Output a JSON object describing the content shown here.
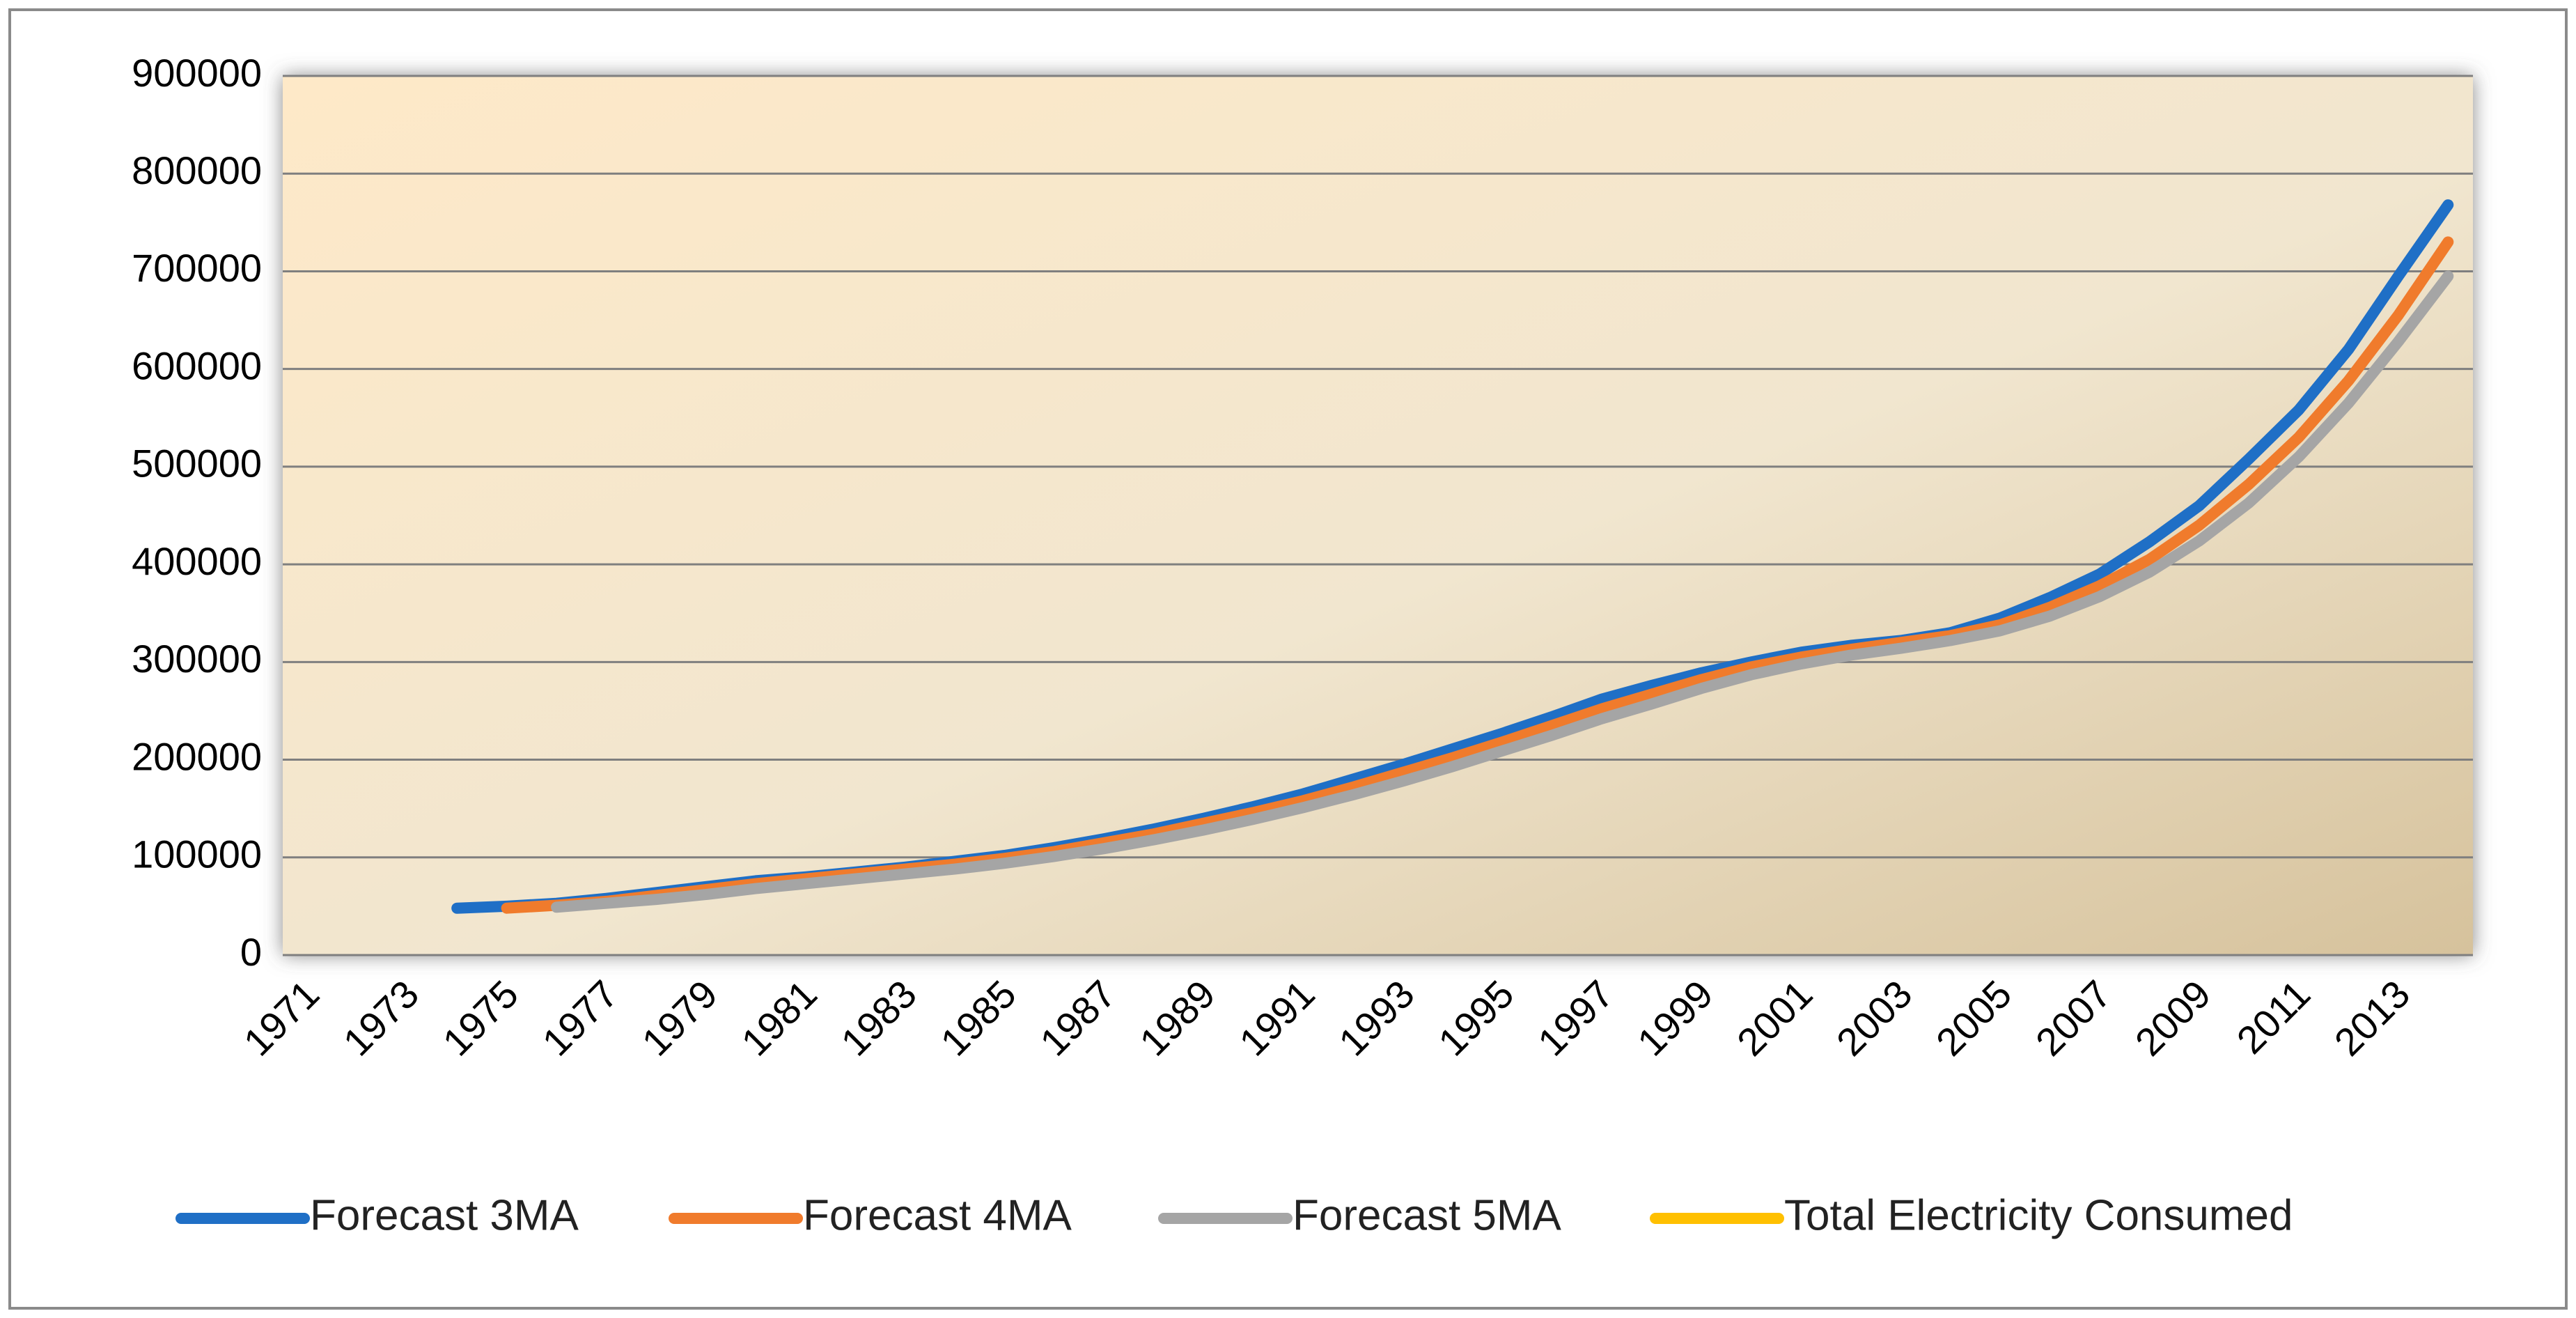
{
  "chart_data": {
    "type": "line",
    "categories": [
      "1971",
      null,
      "1973",
      null,
      "1975",
      null,
      "1977",
      null,
      "1979",
      null,
      "1981",
      null,
      "1983",
      null,
      "1985",
      null,
      "1987",
      null,
      "1989",
      null,
      "1991",
      null,
      "1993",
      null,
      "1995",
      null,
      "1997",
      null,
      "1999",
      null,
      "2001",
      null,
      "2003",
      null,
      "2005",
      null,
      "2007",
      null,
      "2009",
      null,
      "2011",
      null,
      "2013",
      null
    ],
    "series": [
      {
        "name": "Forecast 3MA",
        "color": "#1f6fc6",
        "values": [
          null,
          null,
          null,
          48000,
          50000,
          53000,
          58000,
          64000,
          70000,
          76000,
          80000,
          85000,
          90000,
          96000,
          102000,
          110000,
          119000,
          129000,
          140000,
          152000,
          165000,
          180000,
          195000,
          211000,
          227000,
          244000,
          262000,
          276000,
          289000,
          300000,
          310000,
          317000,
          322000,
          330000,
          345000,
          366000,
          390000,
          423000,
          460000,
          508000,
          558000,
          620000,
          695000,
          768000
        ]
      },
      {
        "name": "Forecast 4MA",
        "color": "#f07b2c",
        "values": [
          null,
          null,
          null,
          null,
          48000,
          51000,
          55000,
          61000,
          67000,
          73000,
          78000,
          83000,
          88000,
          93000,
          99000,
          106000,
          115000,
          124000,
          135000,
          146000,
          158000,
          172000,
          187000,
          202000,
          218000,
          235000,
          252000,
          267000,
          282000,
          295000,
          305000,
          313000,
          320000,
          327000,
          338000,
          356000,
          378000,
          405000,
          440000,
          482000,
          530000,
          588000,
          655000,
          730000
        ]
      },
      {
        "name": "Forecast 5MA",
        "color": "#a5a5a5",
        "values": [
          null,
          null,
          null,
          null,
          null,
          49000,
          53000,
          57000,
          62000,
          68000,
          73000,
          78000,
          83000,
          88000,
          94000,
          101000,
          109000,
          118000,
          128000,
          139000,
          151000,
          164000,
          178000,
          193000,
          209000,
          225000,
          242000,
          257000,
          273000,
          287000,
          298000,
          307000,
          314000,
          322000,
          332000,
          347000,
          367000,
          392000,
          424000,
          463000,
          510000,
          565000,
          628000,
          695000
        ]
      },
      {
        "name": "Total Electricity Consumed",
        "color": "#ffc000",
        "values": [
          null,
          null,
          null,
          null,
          null,
          null,
          null,
          null,
          null,
          null,
          null,
          null,
          null,
          null,
          null,
          null,
          null,
          null,
          null,
          null,
          null,
          null,
          null,
          null,
          null,
          null,
          null,
          null,
          null,
          null,
          null,
          null,
          null,
          null,
          null,
          null,
          null,
          null,
          null,
          null,
          null,
          null,
          null,
          null
        ]
      }
    ],
    "ylim": [
      0,
      900000
    ],
    "yticks": [
      0,
      100000,
      200000,
      300000,
      400000,
      500000,
      600000,
      700000,
      800000,
      900000
    ],
    "grid": true,
    "legend": "bottom"
  }
}
